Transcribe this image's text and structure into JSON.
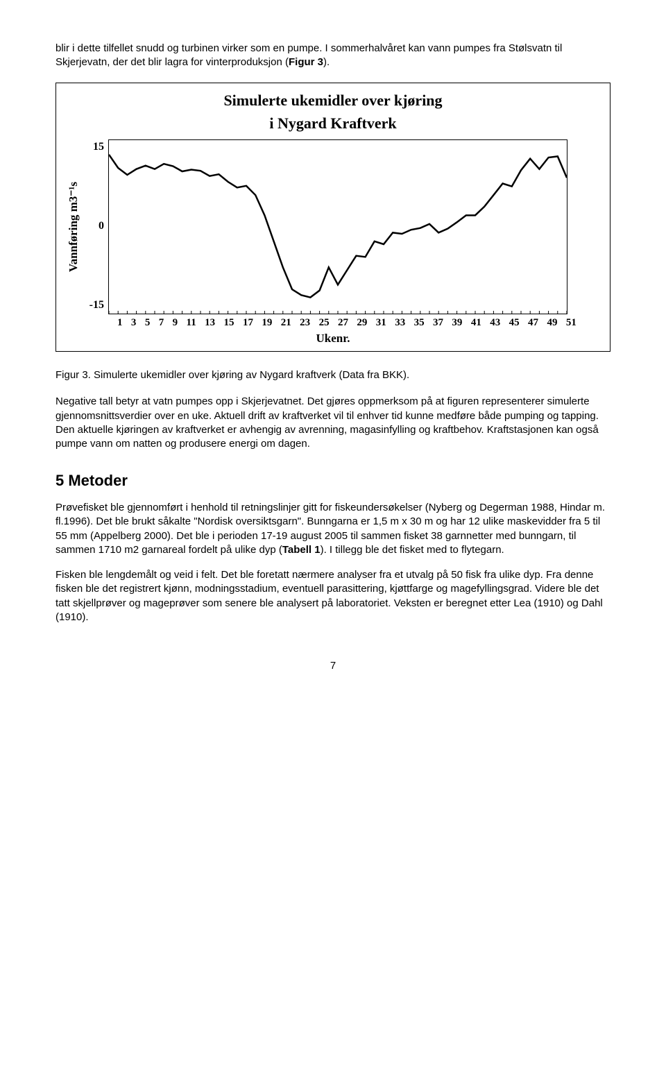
{
  "intro_para": "blir i dette tilfellet snudd og  turbinen virker som en pumpe. I sommerhalvåret kan vann pumpes fra Stølsvatn til Skjerjevatn, der det blir lagra for vinterproduksjon (",
  "intro_figref": "Figur 3",
  "intro_tail": ").",
  "chart": {
    "title_line1": "Simulerte ukemidler over kjøring",
    "title_line2": "i  Nygard Kraftverk",
    "ylabel": "Vannføring m3⁻¹s",
    "xlabel": "Ukenr.",
    "yticks": [
      "15",
      "0",
      "-15"
    ],
    "xticks": [
      "1",
      "3",
      "5",
      "7",
      "9",
      "11",
      "13",
      "15",
      "17",
      "19",
      "21",
      "23",
      "25",
      "27",
      "29",
      "31",
      "33",
      "35",
      "37",
      "39",
      "41",
      "43",
      "45",
      "47",
      "49",
      "51"
    ],
    "ylim": [
      -15,
      15
    ],
    "xlim": [
      1,
      51
    ],
    "line_color": "#000000",
    "line_width": 2.5,
    "background_color": "#ffffff",
    "border_color": "#000000",
    "series": [
      12.5,
      10.2,
      9.0,
      10.0,
      10.6,
      10.0,
      10.9,
      10.5,
      9.6,
      9.9,
      9.7,
      8.8,
      9.1,
      7.8,
      6.8,
      7.1,
      5.5,
      2.0,
      -2.5,
      -7.0,
      -10.8,
      -11.8,
      -12.2,
      -11.0,
      -7.0,
      -10.0,
      -7.5,
      -5.0,
      -5.2,
      -2.5,
      -3.0,
      -1.0,
      -1.2,
      -0.5,
      -0.2,
      0.5,
      -1.0,
      -0.3,
      0.8,
      2.0,
      2.0,
      3.5,
      5.5,
      7.5,
      7.0,
      9.8,
      11.8,
      10.0,
      12.0,
      12.2,
      8.5
    ]
  },
  "caption": "Figur 3. Simulerte ukemidler over kjøring av Nygard kraftverk (Data fra BKK).",
  "para2": "Negative tall betyr at vatn pumpes opp i Skjerjevatnet. Det gjøres oppmerksom på at figuren representerer simulerte gjennomsnittsverdier over en uke. Aktuell drift av kraftverket vil til enhver tid kunne medføre både pumping og tapping. Den aktuelle kjøringen av kraftverket er avhengig av avrenning, magasinfylling og kraftbehov. Kraftstasjonen kan også pumpe vann om natten og produsere energi om dagen.",
  "section_heading": "5 Metoder",
  "para3_a": "Prøvefisket ble gjennomført i henhold til retningslinjer gitt for fiskeundersøkelser (Nyberg og Degerman 1988, Hindar m. fl.1996). Det ble brukt såkalte \"Nordisk oversiktsgarn\". Bunngarna er 1,5 m x 30 m og har 12 ulike maskevidder fra 5 til 55 mm (Appelberg 2000). Det ble i perioden 17-19 august 2005 til sammen fisket 38 garnnetter med bunngarn, til sammen 1710 m2 garnareal fordelt på ulike dyp (",
  "para3_tabref": "Tabell 1",
  "para3_b": "). I tillegg ble det fisket med to flytegarn.",
  "para4": "Fisken ble lengdemålt og veid i felt. Det ble foretatt nærmere analyser fra et utvalg på 50 fisk fra ulike dyp. Fra denne fisken ble det registrert kjønn, modningsstadium, eventuell parasittering, kjøttfarge og magefyllingsgrad. Videre ble det tatt skjellprøver og mageprøver som senere ble analysert på laboratoriet. Veksten er beregnet etter Lea (1910) og Dahl (1910).",
  "page_number": "7"
}
